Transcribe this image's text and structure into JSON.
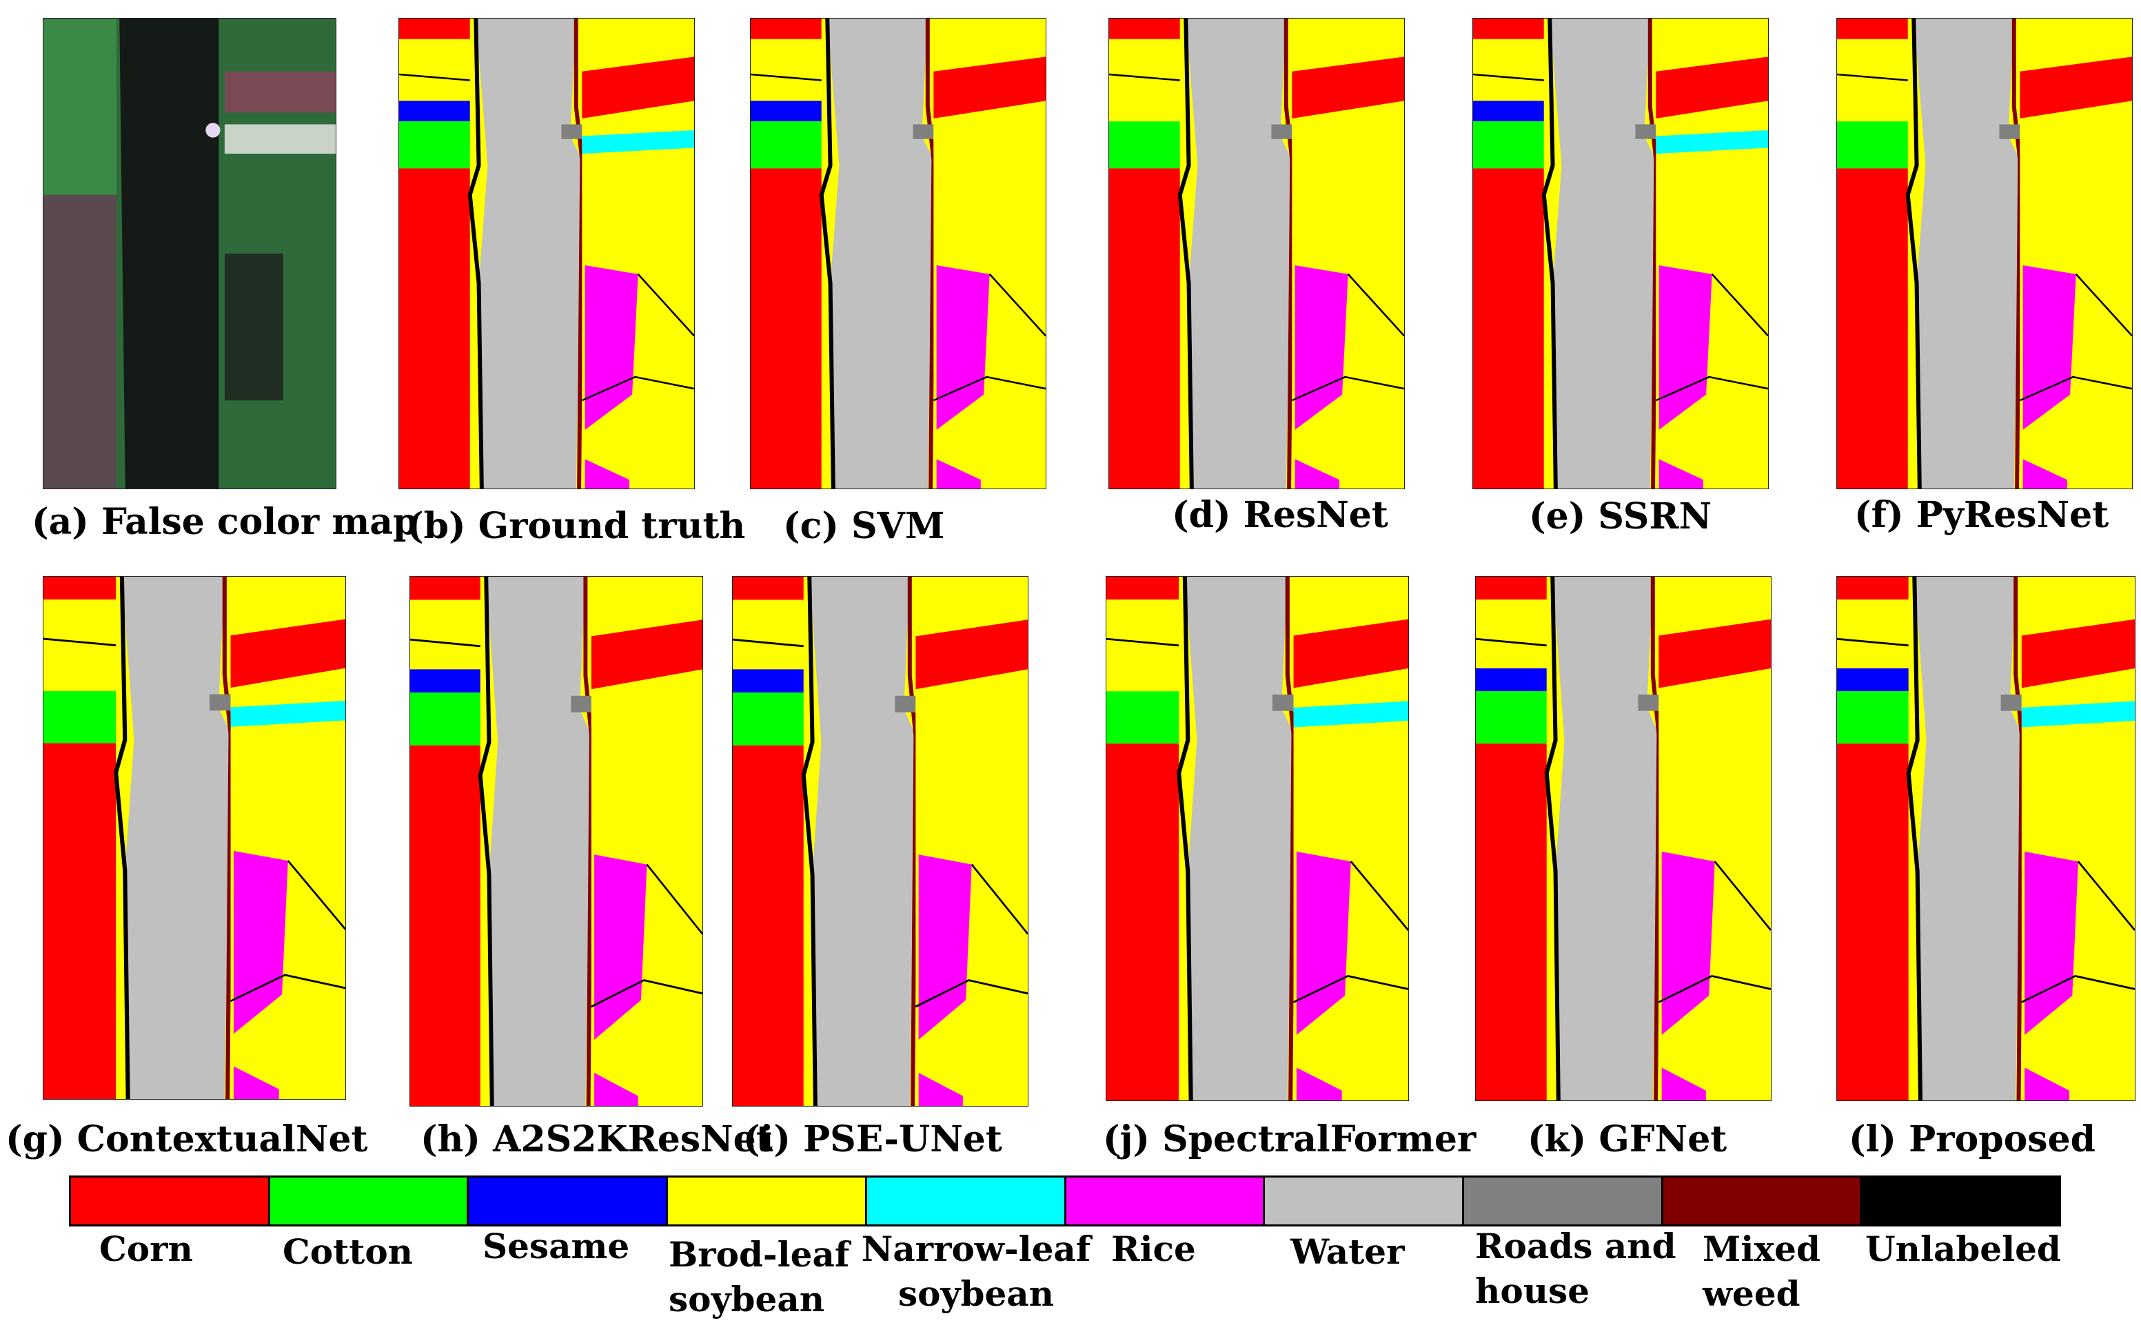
{
  "figure": {
    "panels": [
      {
        "id": "a",
        "caption": "(a) False color map",
        "kind": "false-color"
      },
      {
        "id": "b",
        "caption": "(b) Ground truth",
        "kind": "class-map"
      },
      {
        "id": "c",
        "caption": "(c) SVM",
        "kind": "class-map"
      },
      {
        "id": "d",
        "caption": "(d) ResNet",
        "kind": "class-map"
      },
      {
        "id": "e",
        "caption": "(e) SSRN",
        "kind": "class-map"
      },
      {
        "id": "f",
        "caption": "(f) PyResNet",
        "kind": "class-map"
      },
      {
        "id": "g",
        "caption": "(g) ContextualNet",
        "kind": "class-map"
      },
      {
        "id": "h",
        "caption": "(h) A2S2KResNet",
        "kind": "class-map"
      },
      {
        "id": "i",
        "caption": "(i) PSE-UNet",
        "kind": "class-map"
      },
      {
        "id": "j",
        "caption": "(j) SpectralFormer",
        "kind": "class-map"
      },
      {
        "id": "k",
        "caption": "(k) GFNet",
        "kind": "class-map"
      },
      {
        "id": "l",
        "caption": "(l) Proposed",
        "kind": "class-map"
      }
    ],
    "legend": [
      {
        "label": "Corn",
        "color": "#ff0000"
      },
      {
        "label": "Cotton",
        "color": "#00ff00"
      },
      {
        "label": "Sesame",
        "color": "#0000ff"
      },
      {
        "label": "Brod-leaf soybean",
        "color": "#ffff00"
      },
      {
        "label": "Narrow-leaf soybean",
        "color": "#00ffff"
      },
      {
        "label": "Rice",
        "color": "#ff00ff"
      },
      {
        "label": "Water",
        "color": "#c0c0c0"
      },
      {
        "label": "Roads and house",
        "color": "#808080"
      },
      {
        "label": "Mixed weed",
        "color": "#800000"
      },
      {
        "label": "Unlabeled",
        "color": "#000000"
      }
    ]
  }
}
